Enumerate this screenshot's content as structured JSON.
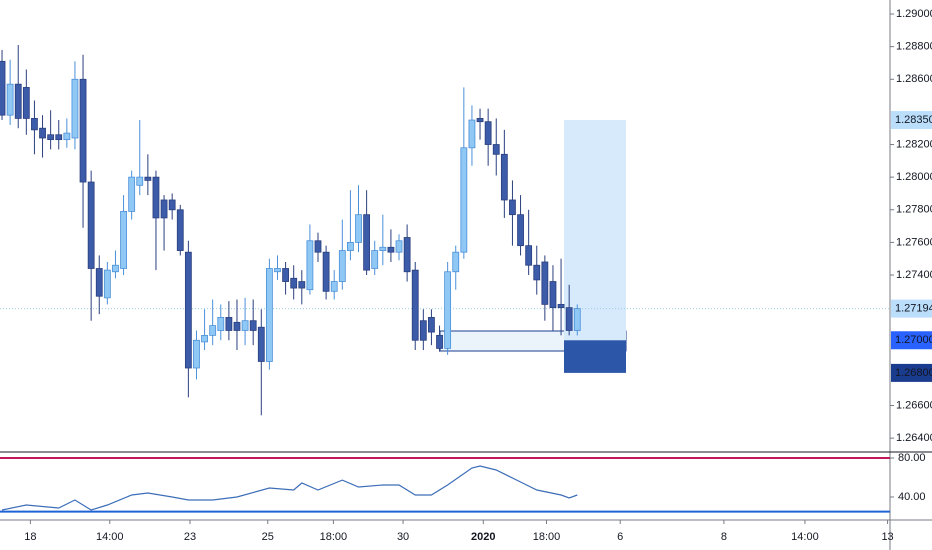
{
  "chart_data": [
    {
      "type": "candlestick",
      "up_color": "#90c8f5",
      "up_border": "#4a90d9",
      "down_color": "#3c5ba8",
      "down_border": "#2a3f7e",
      "open": [
        1.2871,
        1.2838,
        1.2857,
        1.2855,
        1.2836,
        1.283,
        1.2826,
        1.2826,
        1.2823,
        1.2824,
        1.286,
        1.2797,
        1.2744,
        1.2726,
        1.2742,
        1.2744,
        1.2779,
        1.2795,
        1.28,
        1.28,
        1.2786,
        1.2786,
        1.278,
        1.2754,
        1.2683,
        1.2699,
        1.2703,
        1.2706,
        1.2714,
        1.2711,
        1.2706,
        1.2712,
        1.2708,
        1.2687,
        1.2742,
        1.2744,
        1.2738,
        1.2736,
        1.2731,
        1.2761,
        1.2754,
        1.273,
        1.2736,
        1.2755,
        1.276,
        1.2777,
        1.2744,
        1.2755,
        1.2757,
        1.2754,
        1.2763,
        1.2743,
        1.2712,
        1.2714,
        1.2703,
        1.2695,
        1.2742,
        1.2754,
        1.2818,
        1.2836,
        1.2834,
        1.282,
        1.2814,
        1.2786,
        1.2777,
        1.2758,
        1.2746,
        1.2748,
        1.2736,
        1.2722,
        1.272,
        1.2706
      ],
      "high": [
        1.2878,
        1.2872,
        1.2881,
        1.2866,
        1.2847,
        1.2838,
        1.2841,
        1.2835,
        1.2836,
        1.2871,
        1.2875,
        1.2804,
        1.2752,
        1.2748,
        1.2755,
        1.2789,
        1.2804,
        1.2835,
        1.2814,
        1.2804,
        1.2789,
        1.279,
        1.2783,
        1.2761,
        1.2706,
        1.2719,
        1.2725,
        1.2722,
        1.2724,
        1.2725,
        1.2726,
        1.2725,
        1.2719,
        1.275,
        1.2752,
        1.2748,
        1.2746,
        1.2743,
        1.2771,
        1.2766,
        1.2758,
        1.2743,
        1.2774,
        1.2792,
        1.2795,
        1.2792,
        1.2761,
        1.2777,
        1.2768,
        1.2765,
        1.2771,
        1.2748,
        1.2719,
        1.2719,
        1.2709,
        1.2748,
        1.2758,
        1.2855,
        1.2844,
        1.2842,
        1.2842,
        1.2836,
        1.2829,
        1.2798,
        1.2789,
        1.278,
        1.2758,
        1.2752,
        1.2746,
        1.275,
        1.2734,
        1.2722
      ],
      "low": [
        1.2835,
        1.2832,
        1.283,
        1.2826,
        1.2814,
        1.2812,
        1.2817,
        1.2817,
        1.2818,
        1.2817,
        1.2769,
        1.2712,
        1.2716,
        1.2722,
        1.2738,
        1.274,
        1.2774,
        1.2789,
        1.2789,
        1.2743,
        1.2755,
        1.2774,
        1.2752,
        1.2665,
        1.2676,
        1.2694,
        1.2697,
        1.27,
        1.27,
        1.2694,
        1.2697,
        1.2697,
        1.2654,
        1.2682,
        1.2737,
        1.2728,
        1.2725,
        1.2722,
        1.2728,
        1.2748,
        1.2725,
        1.2725,
        1.2731,
        1.2749,
        1.2754,
        1.274,
        1.274,
        1.2746,
        1.2748,
        1.2749,
        1.2736,
        1.2694,
        1.2694,
        1.2697,
        1.2693,
        1.2691,
        1.2731,
        1.275,
        1.2807,
        1.2823,
        1.2807,
        1.2801,
        1.2775,
        1.2758,
        1.2752,
        1.274,
        1.2728,
        1.2712,
        1.2706,
        1.2703,
        1.2703,
        1.2703
      ],
      "close": [
        1.2838,
        1.2857,
        1.2836,
        1.2836,
        1.2829,
        1.2824,
        1.2823,
        1.2823,
        1.2827,
        1.286,
        1.2797,
        1.2744,
        1.2727,
        1.2743,
        1.2746,
        1.2779,
        1.28,
        1.28,
        1.2798,
        1.2775,
        1.2775,
        1.278,
        1.2755,
        1.2683,
        1.27,
        1.2703,
        1.2709,
        1.2714,
        1.2706,
        1.2706,
        1.2712,
        1.2706,
        1.2687,
        1.2744,
        1.2744,
        1.2736,
        1.2732,
        1.2732,
        1.2761,
        1.2754,
        1.273,
        1.2736,
        1.2755,
        1.276,
        1.2777,
        1.2743,
        1.2755,
        1.2757,
        1.2754,
        1.2761,
        1.2742,
        1.27,
        1.27,
        1.2705,
        1.2695,
        1.2742,
        1.2754,
        1.2818,
        1.2835,
        1.2834,
        1.282,
        1.2814,
        1.2786,
        1.2777,
        1.2758,
        1.2746,
        1.2737,
        1.2722,
        1.272,
        1.272,
        1.2706,
        1.27194
      ],
      "xlim": [
        -0.25,
        109.6
      ],
      "xticks": [
        {
          "value": 3.5,
          "label": "18"
        },
        {
          "value": 13.3,
          "label": "14:00"
        },
        {
          "value": 23.2,
          "label": "23"
        },
        {
          "value": 32.8,
          "label": "25"
        },
        {
          "value": 40.9,
          "label": "18:00"
        },
        {
          "value": 49.5,
          "label": "30"
        },
        {
          "value": 59.4,
          "label": "2020"
        },
        {
          "value": 67.2,
          "label": "18:00"
        },
        {
          "value": 76.3,
          "label": "6"
        },
        {
          "value": 89.1,
          "label": "8"
        },
        {
          "value": 99.1,
          "label": "14:00"
        },
        {
          "value": 109.3,
          "label": "13"
        }
      ],
      "ylim": [
        1.26315,
        1.29086
      ],
      "yticks": [
        {
          "value": 1.29,
          "label": "1.29000"
        },
        {
          "value": 1.288,
          "label": "1.28800"
        },
        {
          "value": 1.286,
          "label": "1.28600"
        },
        {
          "value": 1.282,
          "label": "1.28200"
        },
        {
          "value": 1.28,
          "label": "1.28000"
        },
        {
          "value": 1.278,
          "label": "1.27800"
        },
        {
          "value": 1.276,
          "label": "1.27600"
        },
        {
          "value": 1.274,
          "label": "1.27400"
        },
        {
          "value": 1.266,
          "label": "1.26600"
        },
        {
          "value": 1.264,
          "label": "1.26400"
        }
      ],
      "price_tags": [
        {
          "value": 1.2835,
          "label": "1.28350",
          "color": "#bbdefb",
          "text_color": "#131722"
        },
        {
          "value": 1.27194,
          "label": "1.27194",
          "color": "#bbdefb",
          "text_color": "#131722"
        },
        {
          "value": 1.27,
          "label": "1.27000",
          "color": "#2962ff",
          "text_color": "#ffffff"
        },
        {
          "value": 1.268,
          "label": "1.26800",
          "color": "#1a3c8f",
          "text_color": "#ffffff"
        }
      ],
      "position": {
        "target": 1.2835,
        "entry": 1.27,
        "stop": 1.268,
        "target_color": "#d6eafc",
        "stop_color": "#2c56a8"
      }
    },
    {
      "type": "line",
      "color": "#3c6db8",
      "x": [
        0,
        3,
        7,
        9,
        11,
        13,
        16,
        18,
        21,
        23,
        26,
        29,
        33,
        36,
        37,
        39,
        42,
        44,
        47,
        49,
        51,
        53,
        55,
        58,
        59,
        61,
        64,
        66,
        69,
        70,
        71
      ],
      "values": [
        26.7,
        31.8,
        28.7,
        36.9,
        26.7,
        31.8,
        42.1,
        44.1,
        40,
        36.9,
        36.9,
        40,
        49.2,
        47.2,
        54.4,
        47.2,
        57.4,
        50.3,
        52.3,
        52.3,
        42.1,
        42.1,
        52.3,
        69.8,
        71.8,
        67.7,
        55.4,
        47.2,
        42.1,
        39,
        42.1
      ],
      "ylim": [
        16.4,
        86.2
      ],
      "yticks": [
        {
          "value": 80,
          "label": "80.00"
        },
        {
          "value": 40,
          "label": "40.00"
        }
      ],
      "levels": [
        {
          "value": 80,
          "color": "#c2185b"
        },
        {
          "value": 25,
          "color": "#1e63d6"
        }
      ]
    }
  ]
}
